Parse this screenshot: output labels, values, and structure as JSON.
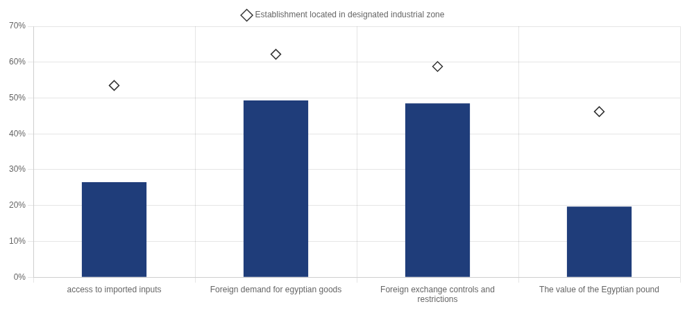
{
  "chart_data": {
    "type": "bar",
    "categories": [
      "access to imported inputs",
      "Foreign demand for egyptian goods",
      "Foreign exchange controls and\nrestrictions",
      "The value of the Egyptian pound"
    ],
    "series": [
      {
        "type": "bar",
        "color": "#1f3d7a",
        "values": [
          0.265,
          0.493,
          0.485,
          0.197
        ]
      },
      {
        "name": "Establishment located in designated industrial zone",
        "type": "scatter",
        "marker": "diamond",
        "line_style": "none",
        "color": "#333333",
        "values": [
          0.535,
          0.622,
          0.588,
          0.462
        ]
      }
    ],
    "ylim": [
      0,
      0.7
    ],
    "yticks": [
      {
        "value": 0.0,
        "label": "0%"
      },
      {
        "value": 0.1,
        "label": "10%"
      },
      {
        "value": 0.2,
        "label": "20%"
      },
      {
        "value": 0.3,
        "label": "30%"
      },
      {
        "value": 0.4,
        "label": "40%"
      },
      {
        "value": 0.5,
        "label": "50%"
      },
      {
        "value": 0.6,
        "label": "60%"
      },
      {
        "value": 0.7,
        "label": "70%"
      }
    ],
    "grid": true,
    "legend": "top"
  }
}
